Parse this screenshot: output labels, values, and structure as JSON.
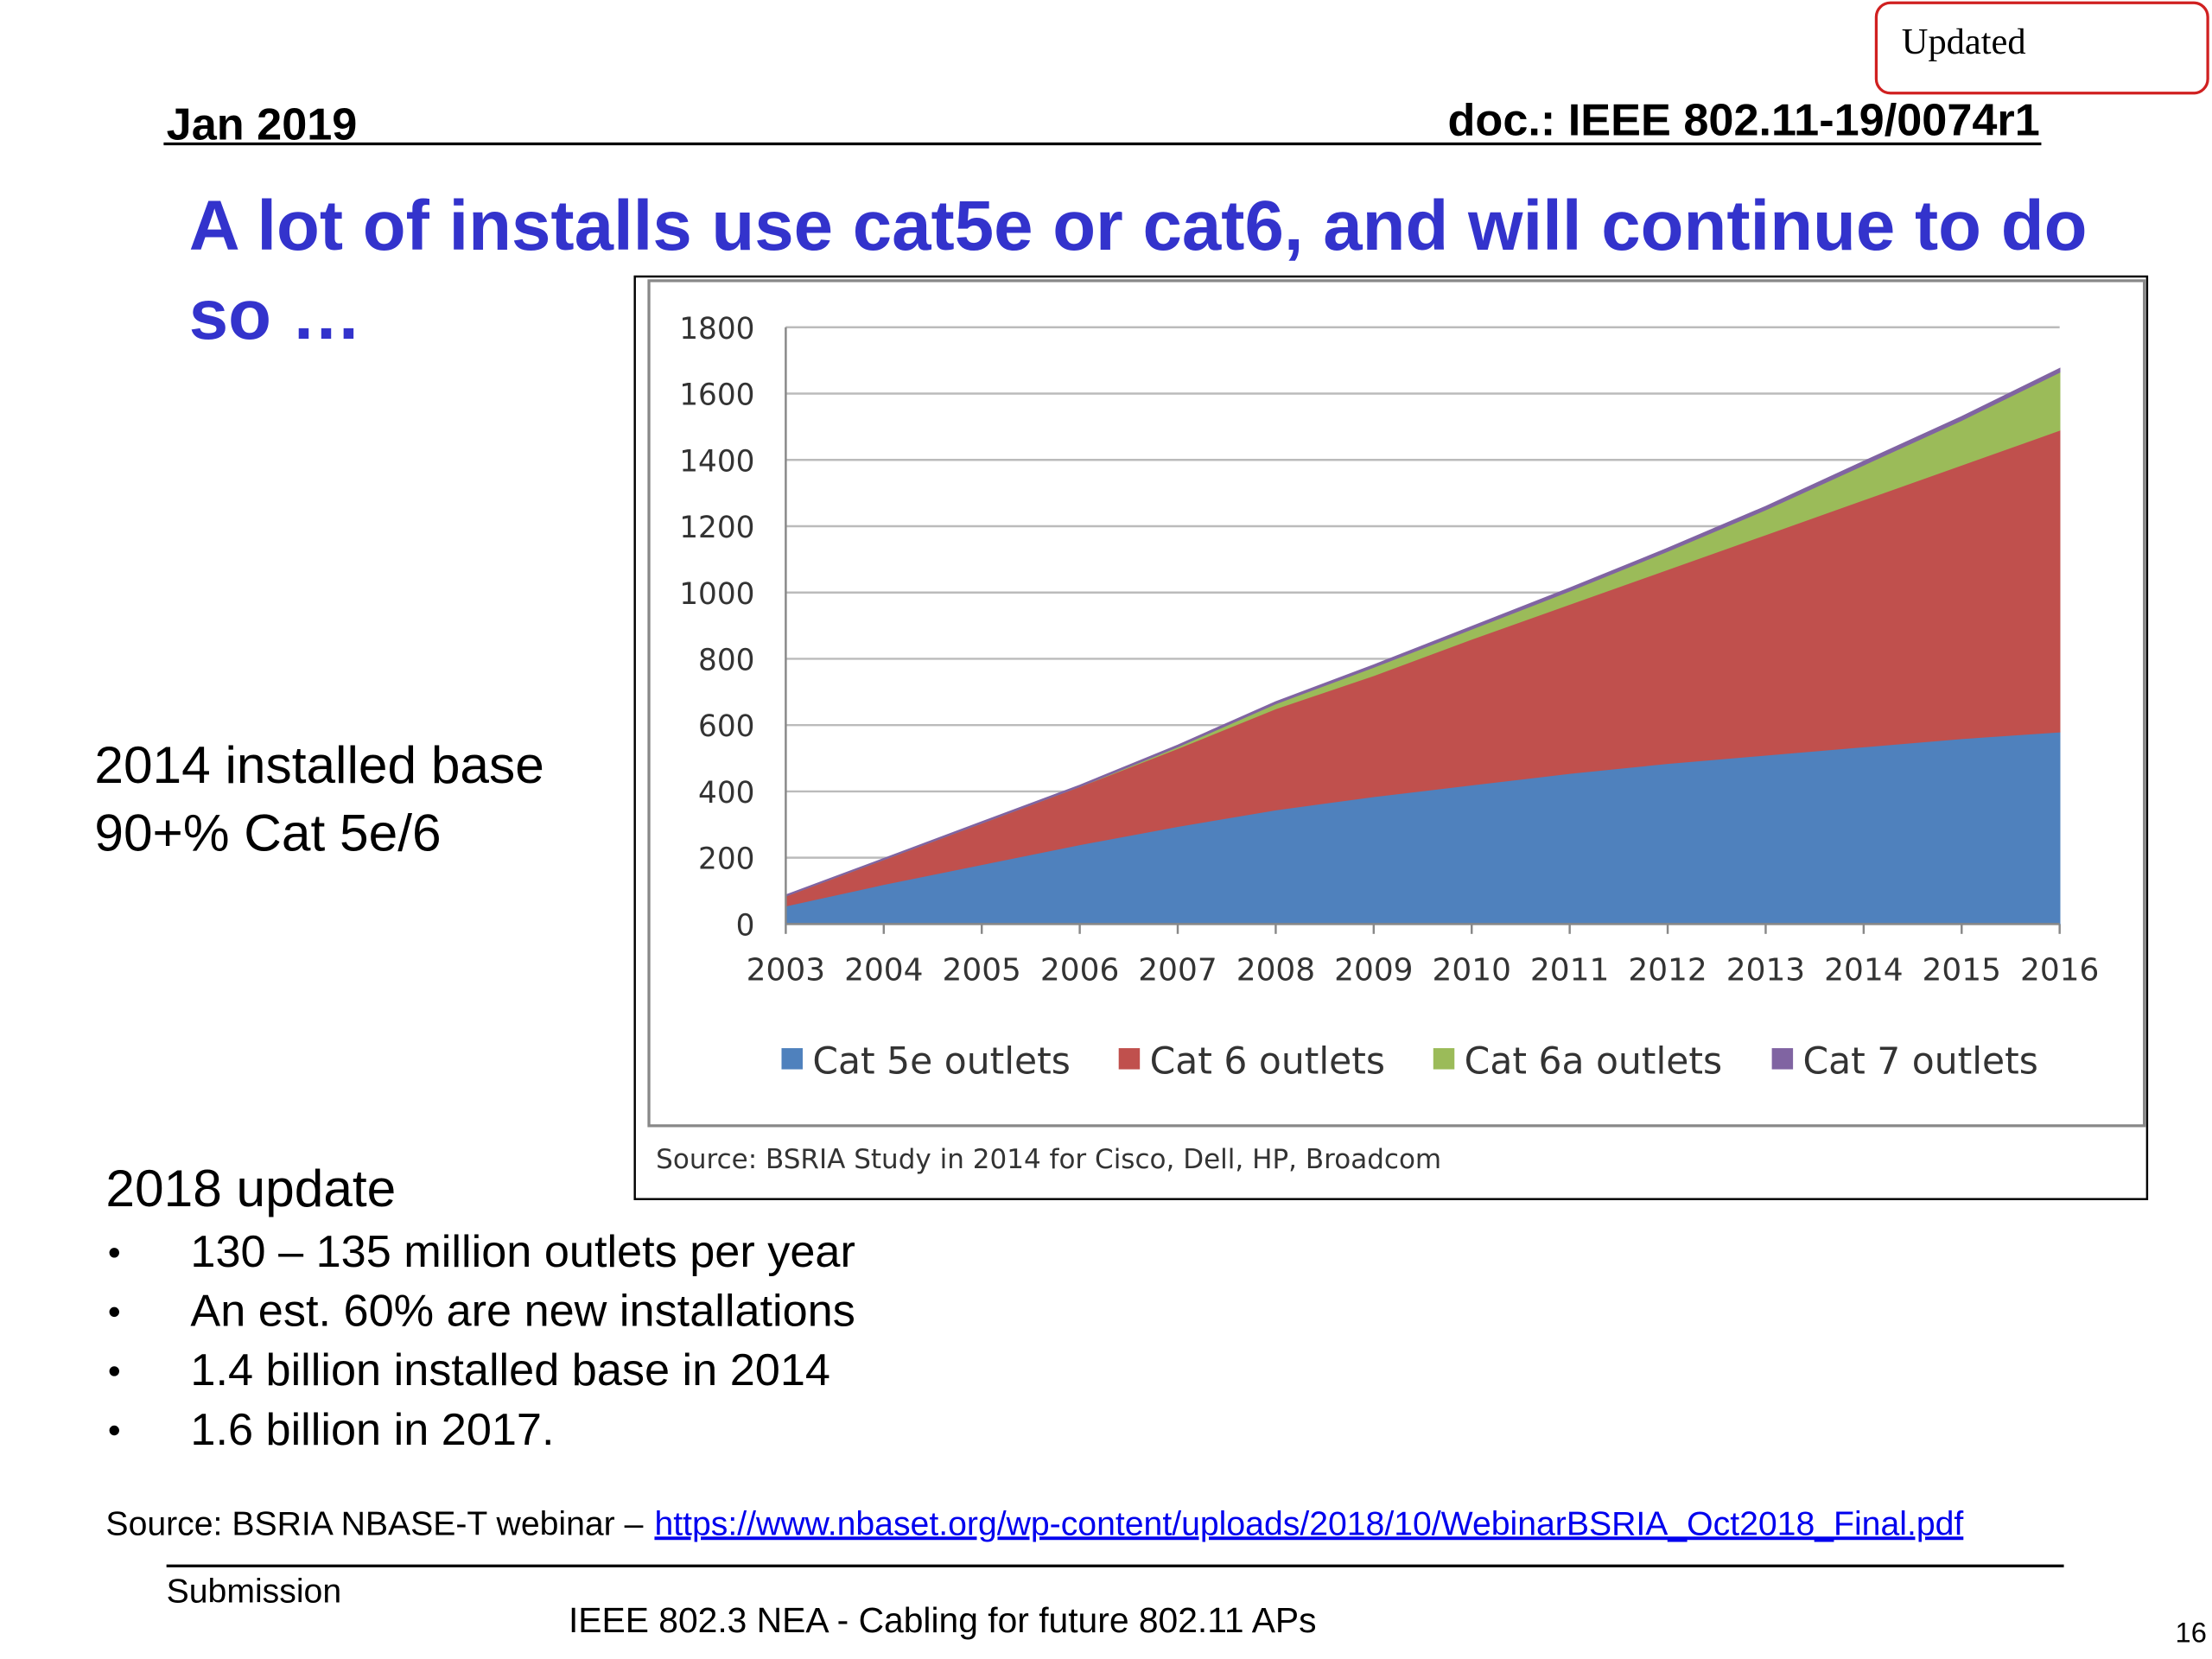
{
  "header": {
    "badge": "Updated",
    "date": "Jan 2019",
    "doc": "doc.: IEEE 802.11-19/0074r1"
  },
  "title_lines": [
    "A lot of installs use cat5e or cat6, and will continue to do",
    "so …"
  ],
  "side_note": [
    "2014 installed base",
    "90+% Cat 5e/6"
  ],
  "update": {
    "heading": "2018 update",
    "bullets": [
      "130 – 135 million outlets per year",
      "An est. 60% are new installations",
      "1.4 billion installed base in 2014",
      "1.6 billion in 2017."
    ]
  },
  "source": {
    "text": "Source: BSRIA NBASE-T webinar –",
    "link": "https://www.nbaset.org/wp-content/uploads/2018/10/WebinarBSRIA_Oct2018_Final.pdf"
  },
  "footer": {
    "left": "Submission",
    "center": "IEEE 802.3 NEA - Cabling for future 802.11 APs",
    "page": "16"
  },
  "chart_data": {
    "type": "stacked_area",
    "caption": "Source: BSRIA Study in 2014 for Cisco, Dell, HP, Broadcom",
    "x": [
      2003,
      2004,
      2005,
      2006,
      2007,
      2008,
      2009,
      2010,
      2011,
      2012,
      2013,
      2014,
      2015,
      2016
    ],
    "xlim": [
      2003,
      2016
    ],
    "xticks": [
      2003,
      2004,
      2005,
      2006,
      2007,
      2008,
      2009,
      2010,
      2011,
      2012,
      2013,
      2014,
      2015,
      2016
    ],
    "ylim": [
      0,
      1800
    ],
    "yticks": [
      0,
      200,
      400,
      600,
      800,
      1000,
      1200,
      1400,
      1600,
      1800
    ],
    "grid": true,
    "legend": "bottom",
    "series": [
      {
        "name": "Cat 5e outlets",
        "color": "#4f81bd",
        "values": [
          55,
          120,
          180,
          240,
          295,
          345,
          385,
          420,
          455,
          485,
          510,
          535,
          560,
          580
        ]
      },
      {
        "name": "Cat 6 outlets",
        "color": "#c0504d",
        "values": [
          30,
          75,
          125,
          175,
          235,
          305,
          365,
          440,
          510,
          585,
          665,
          745,
          825,
          910
        ]
      },
      {
        "name": "Cat 6a outlets",
        "color": "#9bbb59",
        "values": [
          0,
          0,
          0,
          0,
          5,
          15,
          25,
          30,
          40,
          55,
          75,
          105,
          135,
          175
        ]
      },
      {
        "name": "Cat 7 outlets",
        "color": "#8064a2",
        "values": [
          2,
          2,
          3,
          3,
          4,
          5,
          6,
          7,
          8,
          8,
          9,
          10,
          10,
          10
        ]
      }
    ]
  }
}
